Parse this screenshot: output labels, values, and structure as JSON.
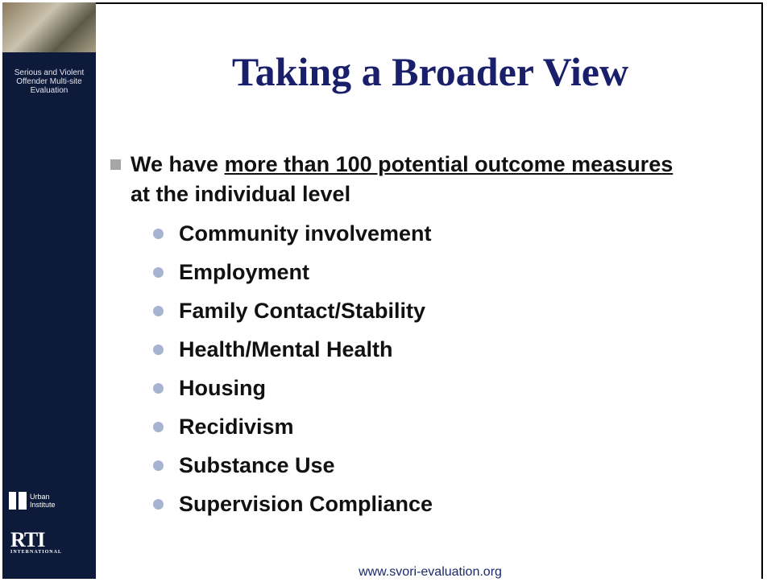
{
  "sidebar": {
    "project": "Serious and Violent Offender Multi-site Evaluation",
    "logo1": "Urban Institute",
    "logo2": {
      "name": "RTI",
      "sub": "INTERNATIONAL"
    }
  },
  "slide": {
    "title": "Taking a Broader View",
    "bullet": {
      "before": "We have ",
      "underlined": "more than 100 potential outcome measures ",
      "after": "at the individual level"
    },
    "subbullets": [
      "Community involvement",
      "Employment",
      "Family Contact/Stability",
      "Health/Mental Health",
      "Housing",
      "Recidivism",
      "Substance Use",
      "Supervision Compliance"
    ]
  },
  "footer": "www.svori-evaluation.org"
}
